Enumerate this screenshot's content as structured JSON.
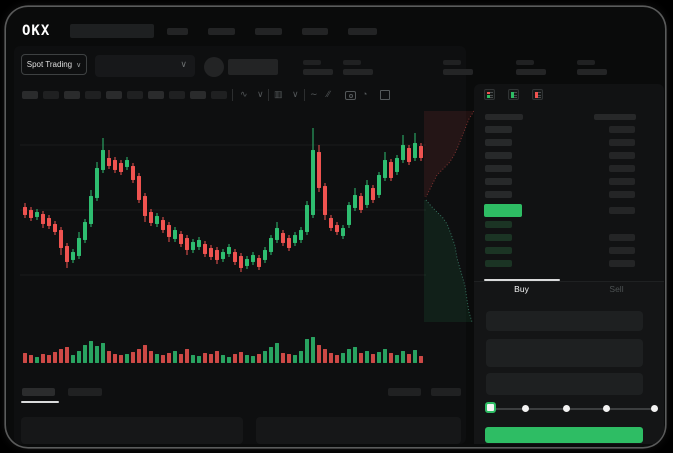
{
  "header": {
    "logo": "OKX",
    "nav_placeholder_count": 5
  },
  "market_bar": {
    "mode_selector": {
      "label": "Spot Trading",
      "chevron": "∨"
    },
    "pair_dropdown": {
      "chevron": "∨",
      "selected_value": ""
    },
    "stat_placeholder_count": 5
  },
  "chart_toolbar": {
    "timeframe_placeholder_count": 10,
    "icons": [
      {
        "name": "line-style-icon",
        "glyph": "∿"
      },
      {
        "name": "chevron-down-icon",
        "glyph": "∨"
      },
      {
        "name": "candle-type-icon",
        "glyph": "▥"
      },
      {
        "name": "chevron-down-icon",
        "glyph": "∨"
      },
      {
        "name": "indicator-icon",
        "glyph": "∼"
      },
      {
        "name": "draw-tools-icon",
        "glyph": "∕∕"
      },
      {
        "name": "camera-icon",
        "glyph": ""
      },
      {
        "name": "refresh-clock-icon",
        "glyph": "◔"
      },
      {
        "name": "fullscreen-icon",
        "glyph": ""
      }
    ]
  },
  "chart_data": [
    {
      "type": "candlestick",
      "title": "",
      "xlabel": "",
      "ylabel": "",
      "axes_labels_visible": false,
      "note": "Skeleton trading UI: no numeric axis labels rendered; OHLC in relative price units, 67 bars",
      "up_color": "#2ebd70",
      "down_color": "#ef5350",
      "grid_prices": [
        190,
        125,
        60
      ],
      "ohlc": [
        [
          128,
          132,
          117,
          120
        ],
        [
          125,
          128,
          114,
          117
        ],
        [
          118,
          126,
          115,
          123
        ],
        [
          121,
          124,
          107,
          111
        ],
        [
          117,
          120,
          106,
          109
        ],
        [
          111,
          114,
          100,
          103
        ],
        [
          105,
          108,
          80,
          87
        ],
        [
          89,
          92,
          67,
          73
        ],
        [
          75,
          86,
          72,
          83
        ],
        [
          79,
          103,
          76,
          97
        ],
        [
          95,
          116,
          92,
          113
        ],
        [
          111,
          145,
          108,
          139
        ],
        [
          137,
          173,
          134,
          167
        ],
        [
          165,
          197,
          162,
          185
        ],
        [
          177,
          185,
          166,
          169
        ],
        [
          175,
          178,
          162,
          165
        ],
        [
          172,
          175,
          160,
          163
        ],
        [
          168,
          178,
          165,
          175
        ],
        [
          169,
          172,
          152,
          155
        ],
        [
          159,
          162,
          132,
          135
        ],
        [
          139,
          142,
          113,
          119
        ],
        [
          123,
          126,
          109,
          112
        ],
        [
          111,
          122,
          108,
          119
        ],
        [
          115,
          118,
          102,
          105
        ],
        [
          110,
          113,
          93,
          98
        ],
        [
          96,
          108,
          93,
          105
        ],
        [
          101,
          104,
          88,
          91
        ],
        [
          97,
          100,
          80,
          85
        ],
        [
          85,
          96,
          82,
          93
        ],
        [
          88,
          98,
          85,
          95
        ],
        [
          91,
          94,
          78,
          81
        ],
        [
          87,
          90,
          75,
          78
        ],
        [
          85,
          88,
          71,
          75
        ],
        [
          76,
          86,
          73,
          83
        ],
        [
          81,
          91,
          78,
          88
        ],
        [
          83,
          86,
          70,
          73
        ],
        [
          79,
          82,
          63,
          67
        ],
        [
          69,
          79,
          66,
          76
        ],
        [
          73,
          83,
          70,
          80
        ],
        [
          77,
          80,
          65,
          68
        ],
        [
          75,
          88,
          72,
          85
        ],
        [
          83,
          100,
          80,
          97
        ],
        [
          95,
          113,
          92,
          107
        ],
        [
          102,
          105,
          89,
          92
        ],
        [
          97,
          100,
          84,
          87
        ],
        [
          92,
          103,
          89,
          100
        ],
        [
          95,
          108,
          92,
          105
        ],
        [
          103,
          134,
          100,
          130
        ],
        [
          120,
          207,
          117,
          185
        ],
        [
          183,
          190,
          143,
          147
        ],
        [
          149,
          152,
          115,
          120
        ],
        [
          117,
          120,
          104,
          107
        ],
        [
          110,
          113,
          100,
          103
        ],
        [
          99,
          110,
          96,
          107
        ],
        [
          110,
          133,
          107,
          130
        ],
        [
          127,
          147,
          124,
          140
        ],
        [
          139,
          142,
          122,
          125
        ],
        [
          130,
          155,
          127,
          150
        ],
        [
          147,
          150,
          132,
          135
        ],
        [
          140,
          163,
          137,
          160
        ],
        [
          157,
          183,
          154,
          175
        ],
        [
          173,
          176,
          154,
          157
        ],
        [
          163,
          180,
          160,
          177
        ],
        [
          175,
          200,
          172,
          190
        ],
        [
          187,
          190,
          170,
          173
        ],
        [
          177,
          202,
          174,
          192
        ],
        [
          189,
          192,
          174,
          177
        ]
      ],
      "volume": [
        10,
        8,
        6,
        9,
        8,
        11,
        14,
        16,
        8,
        12,
        18,
        22,
        17,
        20,
        12,
        9,
        8,
        9,
        11,
        14,
        18,
        12,
        9,
        8,
        10,
        12,
        9,
        14,
        8,
        7,
        10,
        9,
        12,
        8,
        6,
        9,
        11,
        8,
        7,
        9,
        12,
        16,
        20,
        10,
        9,
        8,
        12,
        24,
        26,
        18,
        14,
        10,
        8,
        10,
        14,
        16,
        10,
        12,
        9,
        11,
        14,
        10,
        8,
        12,
        9,
        13,
        7
      ]
    },
    {
      "type": "area",
      "subtype": "depth",
      "orientation": "vertical",
      "note": "Order-book depth silhouette right of chart: asks (red) above, bids (green) below, meeting at mid price",
      "asks_color": "#ef5350",
      "bids_color": "#4fc9a4",
      "asks_curve": [
        [
          50,
          6
        ],
        [
          45,
          14
        ],
        [
          41,
          24
        ],
        [
          37,
          34
        ],
        [
          33,
          44
        ],
        [
          29,
          52
        ],
        [
          25,
          58
        ],
        [
          19,
          64
        ],
        [
          13,
          70
        ],
        [
          9,
          78
        ],
        [
          4,
          88
        ],
        [
          2,
          92
        ]
      ],
      "bids_curve": [
        [
          2,
          95
        ],
        [
          7,
          101
        ],
        [
          13,
          107
        ],
        [
          19,
          113
        ],
        [
          23,
          119
        ],
        [
          27,
          129
        ],
        [
          31,
          141
        ],
        [
          33,
          153
        ],
        [
          37,
          167
        ],
        [
          41,
          181
        ],
        [
          43,
          195
        ],
        [
          45,
          207
        ],
        [
          48,
          217
        ]
      ]
    }
  ],
  "orderbook": {
    "view_icons": [
      "book-combined-icon",
      "book-bids-icon",
      "book-asks-icon"
    ],
    "header_columns": 2,
    "asks_rows": 6,
    "bids_rows": 4,
    "ask_row_has_right_bar": [
      true,
      true,
      true,
      true,
      true,
      true
    ],
    "bid_row_has_right_bar": [
      false,
      true,
      true,
      true
    ],
    "last_price_highlight_color": "#2ebd64"
  },
  "trade_panel": {
    "tabs": [
      {
        "label": "Buy",
        "active": true
      },
      {
        "label": "Sell",
        "active": false
      }
    ],
    "input_placeholders": 3,
    "slider": {
      "stops": [
        0,
        25,
        50,
        75,
        100
      ],
      "selected_index": 0
    },
    "submit_button": {
      "label": "",
      "color": "#2ebd64"
    }
  },
  "bottom_section": {
    "tab_placeholders": 2,
    "active_tab_index": 0,
    "right_control_placeholders": 2,
    "table_panels": 2
  },
  "colors": {
    "background": "#0a0b0b",
    "panel": "#0e0f10",
    "skeleton": "#232425",
    "green": "#2ebd64",
    "red": "#ef5350",
    "bid_bar": "#1b3424",
    "text_dim": "#4d5253"
  }
}
